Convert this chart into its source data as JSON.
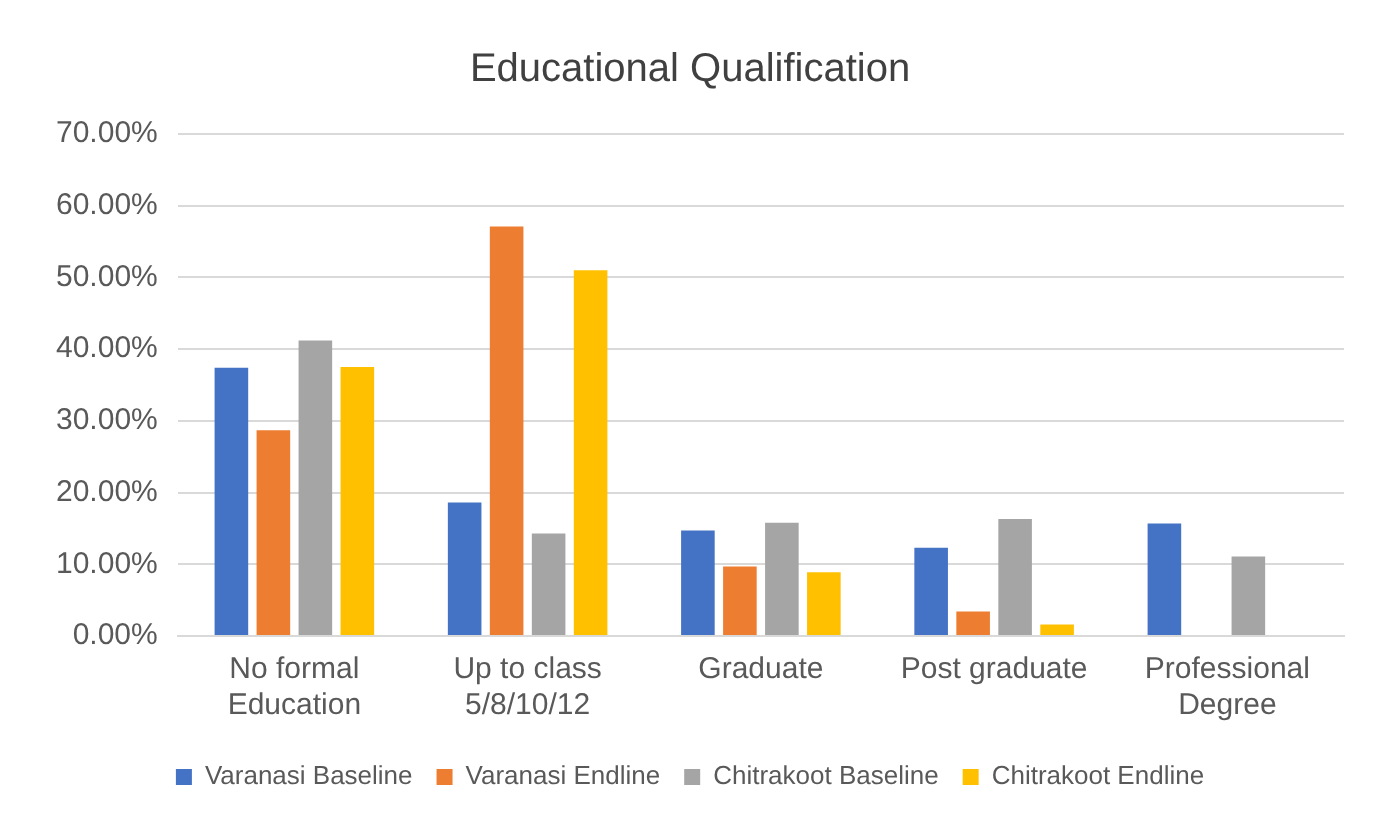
{
  "chart_data": {
    "type": "bar",
    "title": "Educational Qualification",
    "categories": [
      "No formal Education",
      "Up to class 5/8/10/12",
      "Graduate",
      "Post graduate",
      "Professional Degree"
    ],
    "series": [
      {
        "name": "Varanasi Baseline",
        "color": "#4472c4",
        "values": [
          37.4,
          18.6,
          14.7,
          12.3,
          15.7
        ]
      },
      {
        "name": "Varanasi Endline",
        "color": "#ed7d31",
        "values": [
          28.7,
          57.1,
          9.7,
          3.4,
          null
        ]
      },
      {
        "name": "Chitrakoot Baseline",
        "color": "#a5a5a5",
        "values": [
          41.2,
          14.3,
          15.8,
          16.3,
          11.1
        ]
      },
      {
        "name": "Chitrakoot Endline",
        "color": "#ffc000",
        "values": [
          37.5,
          51.0,
          8.9,
          1.6,
          null
        ]
      }
    ],
    "ylim": [
      0,
      70
    ],
    "yticks": [
      {
        "value": 0,
        "label": "0.00%"
      },
      {
        "value": 10,
        "label": "10.00%"
      },
      {
        "value": 20,
        "label": "20.00%"
      },
      {
        "value": 30,
        "label": "30.00%"
      },
      {
        "value": 40,
        "label": "40.00%"
      },
      {
        "value": 50,
        "label": "50.00%"
      },
      {
        "value": 60,
        "label": "60.00%"
      },
      {
        "value": 70,
        "label": "70.00%"
      }
    ],
    "grid": "y",
    "legend": "bottom"
  }
}
